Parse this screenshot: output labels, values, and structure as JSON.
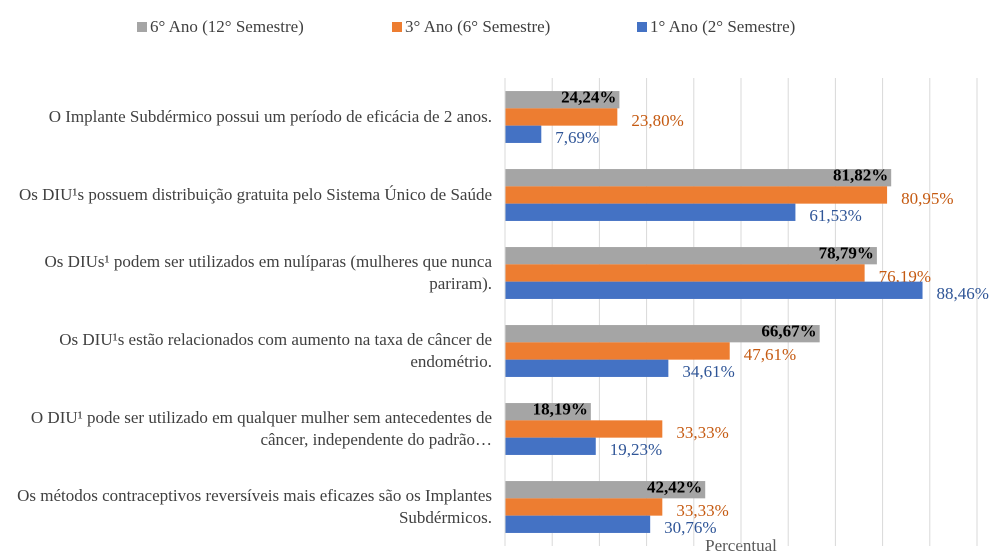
{
  "chart_data": {
    "type": "bar",
    "orientation": "horizontal",
    "x_label": "Percentual",
    "categories": [
      "O Implante Subdérmico possui um período de eficácia de 2 anos.",
      "Os DIU¹s possuem distribuição gratuita pelo Sistema Único de Saúde",
      "Os DIUs¹ podem ser utilizados em nulíparas (mulheres que nunca pariram).",
      "Os DIU¹s estão relacionados com aumento na taxa de câncer de endométrio.",
      "O  DIU¹ pode ser utilizado em qualquer mulher sem antecedentes de câncer, independente do padrão…",
      "Os métodos contraceptivos reversíveis mais eficazes são os Implantes Subdérmicos."
    ],
    "series": [
      {
        "name": "6° Ano (12° Semestre)",
        "color": "#a5a5a5",
        "label_color": "#000000",
        "values": [
          24.24,
          81.82,
          78.79,
          66.67,
          18.19,
          42.42
        ],
        "value_labels": [
          "24,24%",
          "81,82%",
          "78,79%",
          "66,67%",
          "18,19%",
          "42,42%"
        ]
      },
      {
        "name": "3° Ano (6° Semestre)",
        "color": "#ed7d31",
        "label_color": "#c55a11",
        "values": [
          23.8,
          80.95,
          76.19,
          47.61,
          33.33,
          33.33
        ],
        "value_labels": [
          "23,80%",
          "80,95%",
          "76,19%",
          "47,61%",
          "33,33%",
          "33,33%"
        ]
      },
      {
        "name": "1° Ano (2° Semestre)",
        "color": "#4472c4",
        "label_color": "#2f5597",
        "values": [
          7.69,
          61.53,
          88.46,
          34.61,
          19.23,
          30.76
        ],
        "value_labels": [
          "7,69%",
          "61,53%",
          "88,46%",
          "34,61%",
          "19,23%",
          "30,76%"
        ]
      }
    ],
    "xlim": [
      0,
      100
    ],
    "xticks": [
      0,
      10,
      20,
      30,
      40,
      50,
      60,
      70,
      80,
      90,
      100
    ],
    "grid": true,
    "legend": "top"
  }
}
